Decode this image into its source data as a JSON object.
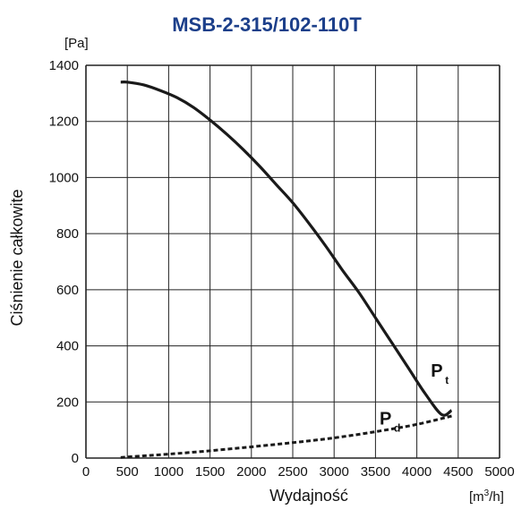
{
  "chart_data": {
    "type": "line",
    "title": "MSB-2-315/102-110T",
    "ylabel": "Ciśnienie całkowite",
    "xlabel": "Wydajność",
    "y_unit": "[Pa]",
    "x_unit_main": "[m",
    "x_unit_sup": "3",
    "x_unit_end": "/h]",
    "xlim": [
      0,
      5000
    ],
    "ylim": [
      0,
      1400
    ],
    "x_ticks": [
      0,
      500,
      1000,
      1500,
      2000,
      2500,
      3000,
      3500,
      4000,
      4500,
      5000
    ],
    "y_ticks": [
      0,
      200,
      400,
      600,
      800,
      1000,
      1200,
      1400
    ],
    "grid": true,
    "series": [
      {
        "name": "P",
        "name_sub": "t",
        "style": "solid",
        "color": "#1a1a1a",
        "points": [
          [
            420,
            1340
          ],
          [
            500,
            1340
          ],
          [
            700,
            1330
          ],
          [
            900,
            1310
          ],
          [
            1100,
            1285
          ],
          [
            1300,
            1250
          ],
          [
            1500,
            1205
          ],
          [
            1700,
            1155
          ],
          [
            1900,
            1100
          ],
          [
            2100,
            1040
          ],
          [
            2300,
            975
          ],
          [
            2500,
            910
          ],
          [
            2700,
            835
          ],
          [
            2900,
            755
          ],
          [
            3100,
            670
          ],
          [
            3300,
            590
          ],
          [
            3500,
            500
          ],
          [
            3700,
            410
          ],
          [
            3900,
            320
          ],
          [
            4100,
            230
          ],
          [
            4300,
            155
          ],
          [
            4420,
            170
          ]
        ]
      },
      {
        "name": "P",
        "name_sub": "d",
        "style": "dashed",
        "color": "#1a1a1a",
        "points": [
          [
            420,
            2
          ],
          [
            700,
            8
          ],
          [
            1000,
            14
          ],
          [
            1500,
            26
          ],
          [
            2000,
            40
          ],
          [
            2500,
            55
          ],
          [
            3000,
            72
          ],
          [
            3500,
            94
          ],
          [
            4000,
            120
          ],
          [
            4450,
            152
          ]
        ]
      }
    ]
  }
}
